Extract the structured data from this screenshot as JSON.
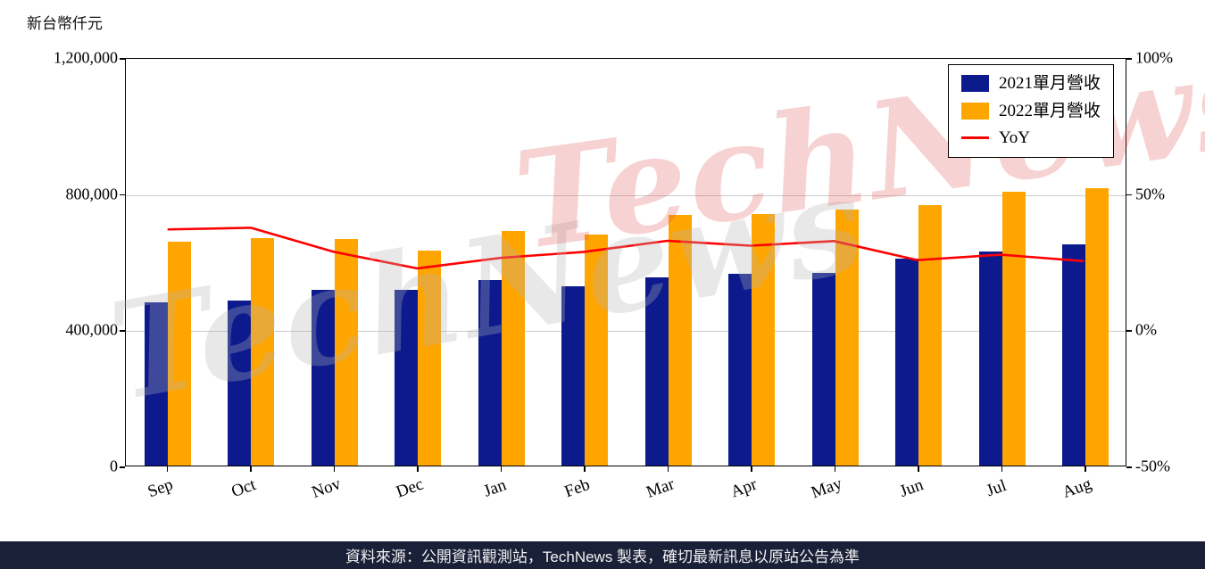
{
  "page": {
    "watermark": "TechNews",
    "footer_text": "資料來源：公開資訊觀測站，TechNews 製表，確切最新訊息以原站公告為準"
  },
  "colors": {
    "bar_2021": "#0c1a8e",
    "bar_2022": "#ffa500",
    "yoy_line": "#ff0000",
    "footer_bg": "#1a2038",
    "watermark_gray": "#b5b5b5",
    "watermark_red": "#e04848",
    "grid": "#cccccc",
    "axis": "#000000"
  },
  "chart_data": {
    "type": "bar+line",
    "title": "",
    "categories": [
      "Sep",
      "Oct",
      "Nov",
      "Dec",
      "Jan",
      "Feb",
      "Mar",
      "Apr",
      "May",
      "Jun",
      "Jul",
      "Aug"
    ],
    "series": [
      {
        "name": "2021單月營收",
        "type": "bar",
        "axis": "left",
        "color": "#0c1a8e",
        "values": [
          480000,
          485000,
          517000,
          515000,
          545000,
          527000,
          553000,
          563000,
          567000,
          608000,
          630000,
          650000
        ]
      },
      {
        "name": "2022單月營收",
        "type": "bar",
        "axis": "left",
        "color": "#ffa500",
        "values": [
          658000,
          668000,
          666000,
          632000,
          690000,
          679000,
          735000,
          738000,
          753000,
          765000,
          805000,
          815000
        ]
      },
      {
        "name": "YoY",
        "type": "line",
        "axis": "right",
        "color": "#ff0000",
        "values": [
          37.1,
          37.7,
          28.8,
          22.7,
          26.6,
          28.8,
          32.9,
          31.1,
          32.8,
          25.8,
          27.8,
          25.4
        ]
      }
    ],
    "left_axis": {
      "label": "新台幣仟元",
      "min": 0,
      "max": 1200000,
      "ticks": [
        "1,200,000",
        "800,000",
        "400,000",
        "0"
      ]
    },
    "right_axis": {
      "min": -50,
      "max": 100,
      "ticks": [
        "100%",
        "50%",
        "0%",
        "-50%"
      ]
    },
    "grid": true,
    "legend_position": "top-right"
  }
}
